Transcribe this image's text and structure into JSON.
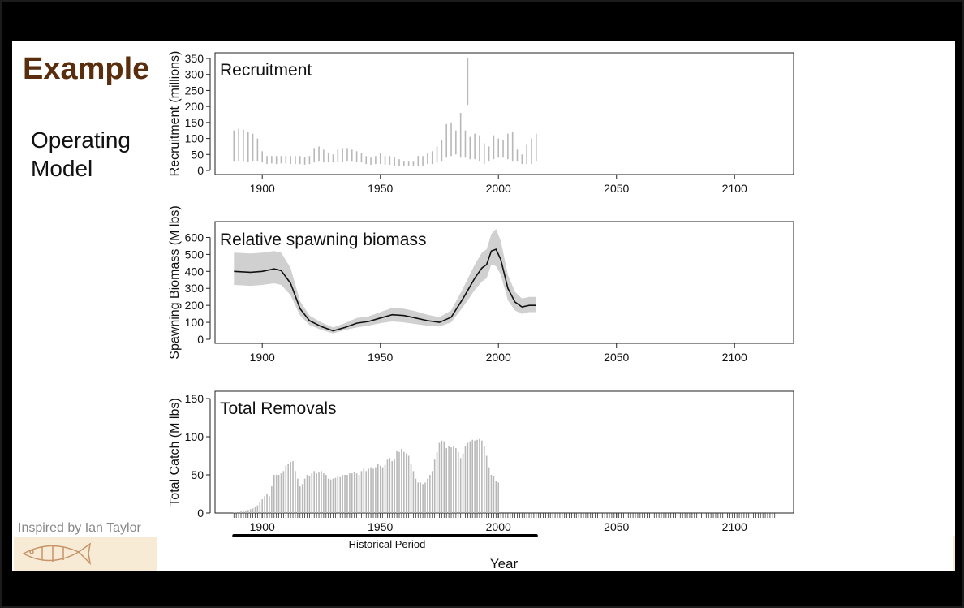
{
  "slide": {
    "title": "Example",
    "subtitle_line1": "Operating",
    "subtitle_line2": "Model",
    "credit": "Inspired by Ian Taylor"
  },
  "colors": {
    "title": "#5a2d0c",
    "bars": "#b8b8b8",
    "band": "#d0d0d0",
    "line": "#111111"
  },
  "chart_data": [
    {
      "type": "bar",
      "title": "Recruitment",
      "ylabel": "Recruitment (millions)",
      "xlim": [
        1880,
        2125
      ],
      "ylim": [
        0,
        350
      ],
      "xticks": [
        1900,
        1950,
        2000,
        2050,
        2100
      ],
      "yticks": [
        0,
        50,
        100,
        150,
        200,
        250,
        300,
        350
      ],
      "series": [
        {
          "x": [
            1888,
            1890,
            1892,
            1894,
            1896,
            1898,
            1900,
            1902,
            1904,
            1906,
            1908,
            1910,
            1912,
            1914,
            1916,
            1918,
            1920,
            1922,
            1924,
            1926,
            1928,
            1930,
            1932,
            1934,
            1936,
            1938,
            1940,
            1942,
            1944,
            1946,
            1948,
            1950,
            1952,
            1954,
            1956,
            1958,
            1960,
            1962,
            1964,
            1966,
            1968,
            1970,
            1972,
            1974,
            1976,
            1978,
            1980,
            1982,
            1984,
            1986,
            1987,
            1988,
            1990,
            1992,
            1994,
            1996,
            1998,
            2000,
            2002,
            2004,
            2006,
            2008,
            2010,
            2012,
            2014,
            2016
          ],
          "low": [
            30,
            30,
            30,
            28,
            30,
            30,
            25,
            20,
            22,
            20,
            22,
            22,
            20,
            20,
            20,
            18,
            20,
            25,
            30,
            25,
            25,
            25,
            28,
            28,
            30,
            30,
            28,
            25,
            20,
            18,
            20,
            20,
            18,
            18,
            15,
            15,
            15,
            15,
            15,
            15,
            15,
            20,
            20,
            25,
            30,
            40,
            45,
            50,
            40,
            40,
            205,
            35,
            35,
            30,
            20,
            30,
            35,
            40,
            40,
            35,
            30,
            30,
            20,
            20,
            20,
            30
          ],
          "high": [
            125,
            130,
            128,
            120,
            115,
            100,
            60,
            45,
            45,
            45,
            45,
            45,
            45,
            45,
            45,
            42,
            45,
            70,
            75,
            65,
            55,
            50,
            65,
            70,
            70,
            65,
            60,
            55,
            45,
            40,
            45,
            55,
            45,
            45,
            40,
            35,
            30,
            30,
            30,
            45,
            45,
            55,
            60,
            75,
            95,
            145,
            150,
            125,
            180,
            125,
            350,
            105,
            115,
            110,
            85,
            75,
            110,
            100,
            95,
            115,
            120,
            65,
            50,
            80,
            100,
            115
          ]
        }
      ]
    },
    {
      "type": "area",
      "title": "Relative spawning biomass",
      "ylabel": "Spawning Biomass (M lbs)",
      "xlim": [
        1880,
        2125
      ],
      "ylim": [
        0,
        650
      ],
      "xticks": [
        1900,
        1950,
        2000,
        2050,
        2100
      ],
      "yticks": [
        0,
        100,
        200,
        300,
        400,
        500,
        600
      ],
      "series": [
        {
          "x": [
            1888,
            1895,
            1900,
            1905,
            1908,
            1912,
            1916,
            1920,
            1925,
            1930,
            1935,
            1940,
            1945,
            1950,
            1955,
            1960,
            1965,
            1970,
            1975,
            1980,
            1985,
            1990,
            1993,
            1995,
            1997,
            1999,
            2001,
            2004,
            2007,
            2010,
            2013,
            2016
          ],
          "mid": [
            400,
            395,
            400,
            415,
            405,
            330,
            180,
            110,
            75,
            50,
            70,
            95,
            105,
            125,
            145,
            140,
            125,
            110,
            100,
            130,
            240,
            360,
            420,
            440,
            520,
            530,
            470,
            300,
            220,
            190,
            200,
            200
          ],
          "low": [
            320,
            315,
            320,
            330,
            320,
            260,
            140,
            85,
            55,
            35,
            55,
            70,
            80,
            95,
            105,
            100,
            90,
            80,
            75,
            100,
            190,
            290,
            340,
            360,
            440,
            430,
            380,
            230,
            170,
            150,
            160,
            160
          ],
          "high": [
            510,
            505,
            510,
            520,
            510,
            420,
            225,
            140,
            100,
            70,
            95,
            125,
            135,
            160,
            185,
            180,
            165,
            145,
            130,
            170,
            300,
            440,
            510,
            530,
            620,
            650,
            580,
            380,
            280,
            240,
            250,
            250
          ]
        }
      ]
    },
    {
      "type": "bar",
      "title": "Total Removals",
      "ylabel": "Total Catch (M lbs)",
      "xlabel": "Year",
      "xlim": [
        1880,
        2125
      ],
      "ylim": [
        0,
        150
      ],
      "xticks": [
        1900,
        1950,
        2000,
        2050,
        2100
      ],
      "yticks": [
        0,
        50,
        100,
        150
      ],
      "ticks_years": [
        1888,
        2117
      ],
      "series": [
        {
          "x_start": 1888,
          "values": [
            1,
            1,
            1,
            2,
            2,
            3,
            4,
            5,
            6,
            8,
            10,
            14,
            18,
            22,
            25,
            22,
            35,
            50,
            50,
            50,
            52,
            55,
            62,
            65,
            67,
            68,
            55,
            45,
            35,
            38,
            45,
            50,
            48,
            52,
            55,
            52,
            53,
            55,
            52,
            50,
            45,
            44,
            45,
            46,
            48,
            47,
            50,
            50,
            50,
            52,
            52,
            54,
            52,
            50,
            55,
            58,
            55,
            58,
            60,
            58,
            60,
            65,
            62,
            60,
            63,
            70,
            72,
            68,
            70,
            82,
            80,
            84,
            80,
            78,
            75,
            65,
            55,
            45,
            40,
            40,
            38,
            40,
            45,
            50,
            55,
            70,
            80,
            92,
            95,
            94,
            85,
            88,
            86,
            87,
            85,
            80,
            72,
            78,
            88,
            92,
            94,
            96,
            95,
            96,
            97,
            95,
            88,
            75,
            60,
            50,
            48,
            42,
            40
          ]
        }
      ],
      "annotation": {
        "label": "Historical Period",
        "from": 1888,
        "to": 2016
      }
    }
  ]
}
